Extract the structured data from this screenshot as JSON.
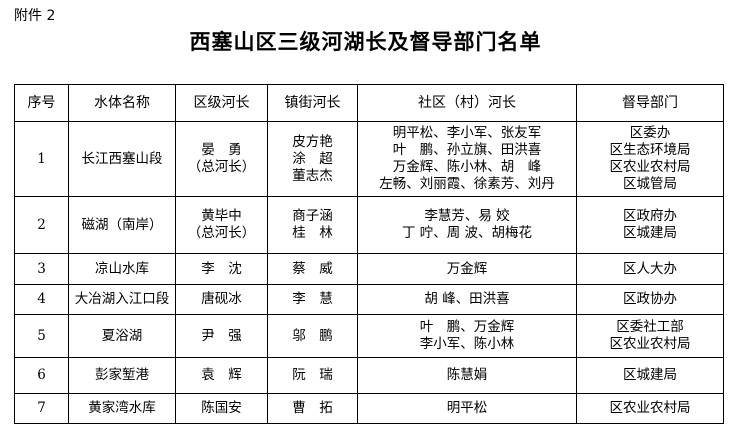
{
  "attachment_label": "附件 2",
  "title": "西塞山区三级河湖长及督导部门名单",
  "table": {
    "headers": [
      "序号",
      "水体名称",
      "区级河长",
      "镇街河长",
      "社区（村）河长",
      "督导部门"
    ],
    "rows": [
      {
        "no": "1",
        "water": "长江西塞山段",
        "district": [
          "晏　勇",
          "（总河长）"
        ],
        "town": [
          "皮方艳",
          "涂　超",
          "董志杰"
        ],
        "community": [
          "明平松、李小军、张友军",
          "叶　鹏、孙立旗、田洪喜",
          "万金辉、陈小林、胡　峰",
          "左畅、刘丽霞、徐素芳、刘丹"
        ],
        "dept": [
          "区委办",
          "区生态环境局",
          "区农业农村局",
          "区城管局"
        ]
      },
      {
        "no": "2",
        "water": "磁湖（南岸）",
        "district": [
          "黄毕中",
          "（总河长）"
        ],
        "town": [
          "商子涵",
          "桂　林"
        ],
        "community": [
          "李慧芳、易 姣",
          "丁 咛、周 波、胡梅花"
        ],
        "dept": [
          "区政府办",
          "区城建局"
        ]
      },
      {
        "no": "3",
        "water": "凉山水库",
        "district": [
          "李　沈"
        ],
        "town": [
          "蔡　威"
        ],
        "community": [
          "万金辉"
        ],
        "dept": [
          "区人大办"
        ]
      },
      {
        "no": "4",
        "water": "大冶湖入江口段",
        "district": [
          "唐砚冰"
        ],
        "town": [
          "李　慧"
        ],
        "community": [
          "胡 峰、田洪喜"
        ],
        "dept": [
          "区政协办"
        ]
      },
      {
        "no": "5",
        "water": "夏浴湖",
        "district": [
          "尹　强"
        ],
        "town": [
          "邬　鹏"
        ],
        "community": [
          "叶　鹏、万金辉",
          "李小军、陈小林"
        ],
        "dept": [
          "区委社工部",
          "区农业农村局"
        ]
      },
      {
        "no": "6",
        "water": "彭家堑港",
        "district": [
          "袁　辉"
        ],
        "town": [
          "阮　瑞"
        ],
        "community": [
          "陈慧娟"
        ],
        "dept": [
          "区城建局"
        ]
      },
      {
        "no": "7",
        "water": "黄家湾水库",
        "district": [
          "陈国安"
        ],
        "town": [
          "曹　拓"
        ],
        "community": [
          "明平松"
        ],
        "dept": [
          "区农业农村局"
        ]
      }
    ]
  }
}
